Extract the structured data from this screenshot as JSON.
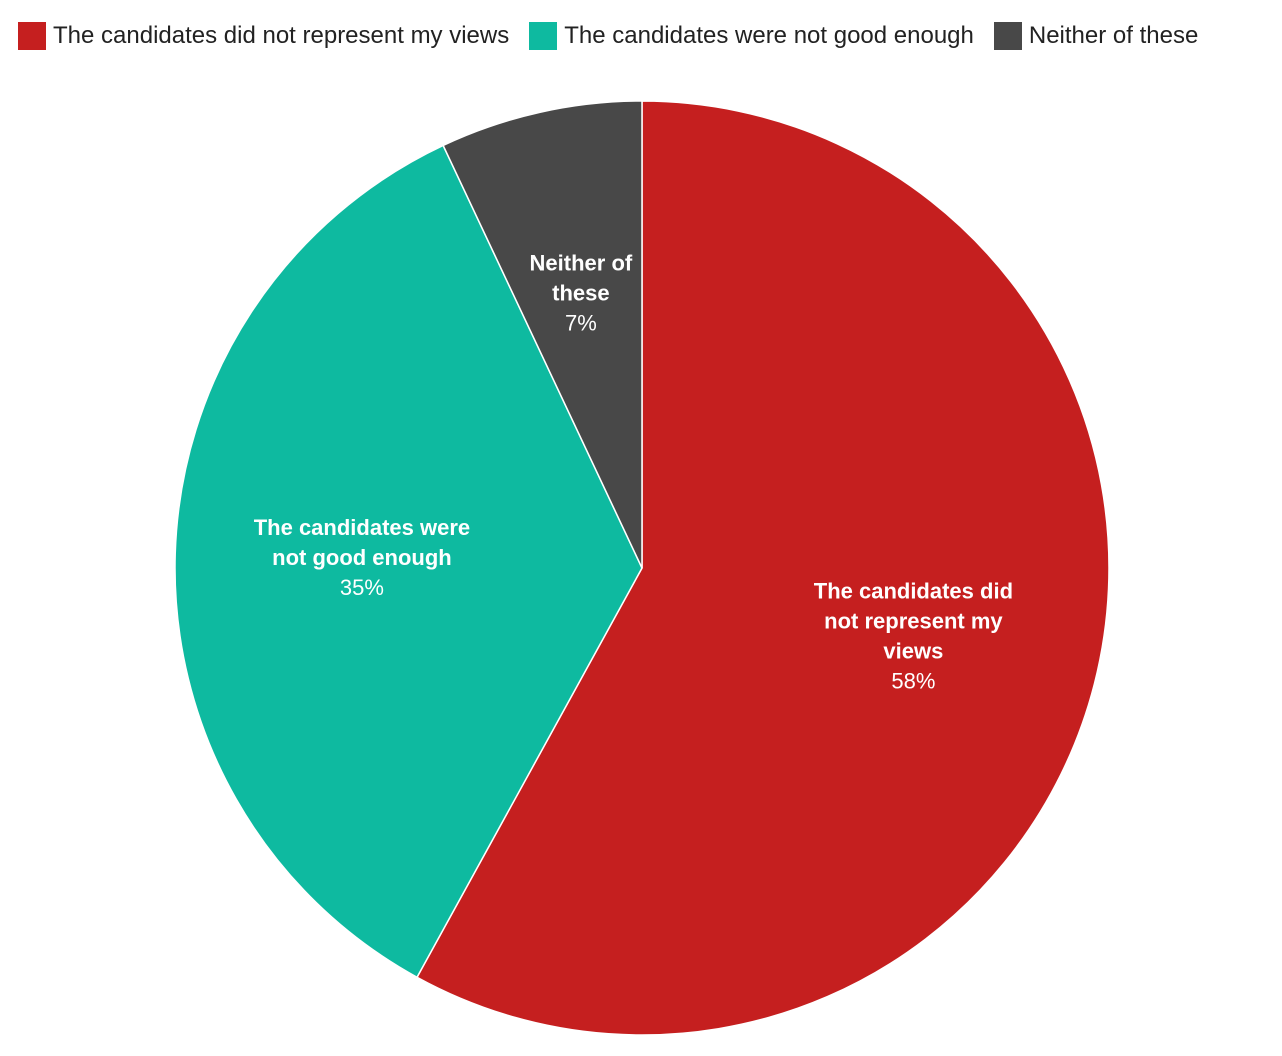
{
  "chart_data": {
    "type": "pie",
    "slices": [
      {
        "name": "The candidates did not represent my views",
        "value": 58,
        "value_label": "58%",
        "label_lines": [
          "The candidates did",
          "not represent my",
          "views"
        ],
        "color": "#C51F1F"
      },
      {
        "name": "The candidates were not good enough",
        "value": 35,
        "value_label": "35%",
        "label_lines": [
          "The candidates were",
          "not good enough"
        ],
        "color": "#0EBAA0"
      },
      {
        "name": "Neither of these",
        "value": 7,
        "value_label": "7%",
        "label_lines": [
          "Neither of",
          "these"
        ],
        "color": "#484848"
      }
    ],
    "legend_position": "top-left",
    "start_angle": "12 o'clock",
    "direction": "clockwise"
  },
  "legend": {
    "items": [
      {
        "label": "The candidates did not represent my views",
        "color": "#C51F1F"
      },
      {
        "label": "The candidates were not good enough",
        "color": "#0EBAA0"
      },
      {
        "label": "Neither of these",
        "color": "#484848"
      }
    ]
  }
}
